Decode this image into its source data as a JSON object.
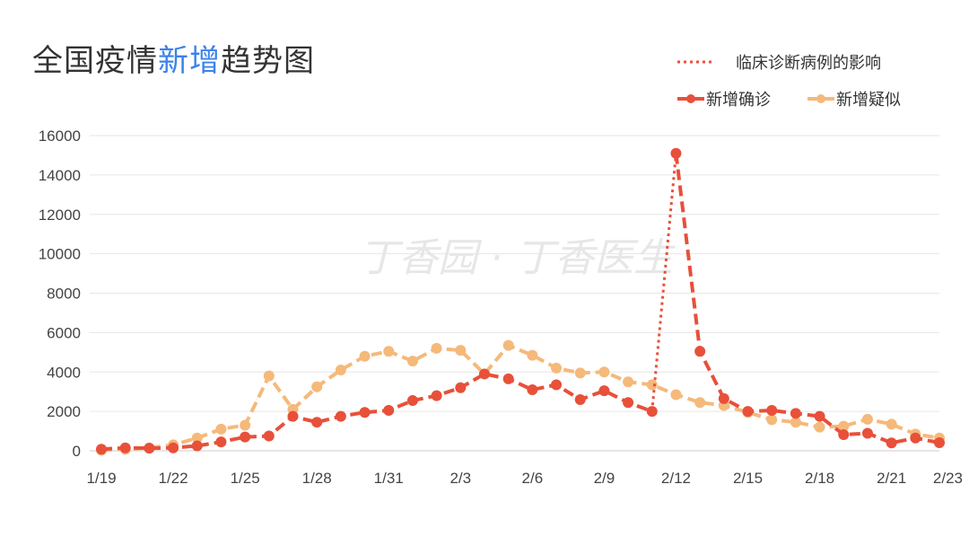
{
  "title": {
    "prefix": "全国疫情",
    "highlight": "新增",
    "suffix": "趋势图"
  },
  "watermark": "丁香园 · 丁香医生",
  "legend": {
    "clinical_label": "临床诊断病例的影响",
    "confirmed_label": "新增确诊",
    "suspected_label": "新增疑似"
  },
  "colors": {
    "confirmed": "#e8503a",
    "suspected": "#f5b97a",
    "title_highlight": "#3b82e8",
    "grid": "#e6e6e6"
  },
  "chart_data": {
    "type": "line",
    "x": [
      "1/19",
      "1/20",
      "1/21",
      "1/22",
      "1/23",
      "1/24",
      "1/25",
      "1/26",
      "1/27",
      "1/28",
      "1/29",
      "1/30",
      "1/31",
      "2/1",
      "2/2",
      "2/3",
      "2/4",
      "2/5",
      "2/6",
      "2/7",
      "2/8",
      "2/9",
      "2/10",
      "2/11",
      "2/12",
      "2/13",
      "2/14",
      "2/15",
      "2/16",
      "2/17",
      "2/18",
      "2/19",
      "2/20",
      "2/21",
      "2/22",
      "2/23"
    ],
    "x_tick_labels": [
      "1/19",
      "1/22",
      "1/25",
      "1/28",
      "1/31",
      "2/3",
      "2/6",
      "2/9",
      "2/12",
      "2/15",
      "2/18",
      "2/21",
      "2/23"
    ],
    "ylim": [
      0,
      16000
    ],
    "y_ticks": [
      0,
      2000,
      4000,
      6000,
      8000,
      10000,
      12000,
      14000,
      16000
    ],
    "grid": true,
    "legend_position": "top-right",
    "series": [
      {
        "name": "新增确诊",
        "values": [
          80,
          150,
          130,
          150,
          250,
          450,
          700,
          750,
          1750,
          1450,
          1750,
          1950,
          2050,
          2550,
          2800,
          3200,
          3900,
          3650,
          3100,
          3350,
          2600,
          3050,
          2450,
          2000,
          15100,
          5050,
          2650,
          2000,
          2050,
          1900,
          1750,
          820,
          890,
          400,
          650,
          410
        ]
      },
      {
        "name": "新增疑似",
        "values": [
          30,
          80,
          150,
          300,
          650,
          1100,
          1300,
          3800,
          2100,
          3250,
          4100,
          4800,
          5050,
          4550,
          5200,
          5100,
          3900,
          5350,
          4850,
          4200,
          3950,
          4000,
          3500,
          3350,
          2850,
          2450,
          2300,
          1950,
          1580,
          1450,
          1200,
          1250,
          1600,
          1350,
          850,
          650
        ]
      }
    ],
    "clinical_impact": {
      "label": "临床诊断病例的影响",
      "from": {
        "x": "2/11",
        "y": 2000
      },
      "to": {
        "x": "2/12",
        "y": 15100
      }
    }
  }
}
